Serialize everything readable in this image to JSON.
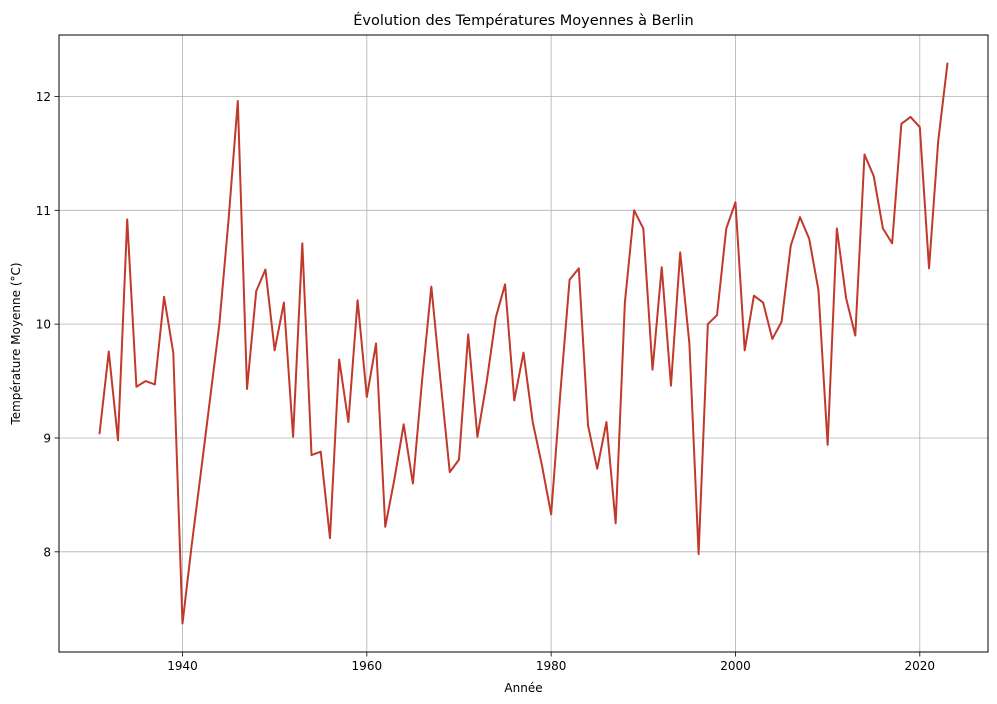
{
  "chart_data": {
    "type": "line",
    "title": "Évolution des Températures Moyennes à Berlin",
    "xlabel": "Année",
    "ylabel": "Température Moyenne (°C)",
    "xlim": [
      1926.6,
      2027.4
    ],
    "ylim": [
      7.12,
      12.54
    ],
    "xticks": [
      1940,
      1960,
      1980,
      2000,
      2020
    ],
    "yticks": [
      8,
      9,
      10,
      11,
      12
    ],
    "grid": true,
    "line_color": "#c0392b",
    "series": [
      {
        "x": [
          1931,
          1932,
          1933,
          1934,
          1935,
          1936,
          1937,
          1938,
          1939,
          1940,
          1941,
          1942,
          1943,
          1944,
          1945,
          1946,
          1947,
          1948,
          1949,
          1950,
          1951,
          1952,
          1953,
          1954,
          1955,
          1956,
          1957,
          1958,
          1959,
          1960,
          1961,
          1962,
          1963,
          1964,
          1965,
          1966,
          1967,
          1968,
          1969,
          1970,
          1971,
          1972,
          1973,
          1974,
          1975,
          1976,
          1977,
          1978,
          1979,
          1980,
          1981,
          1982,
          1983,
          1984,
          1985,
          1986,
          1987,
          1988,
          1989,
          1990,
          1991,
          1992,
          1993,
          1994,
          1995,
          1996,
          1997,
          1998,
          1999,
          2000,
          2001,
          2002,
          2003,
          2004,
          2005,
          2006,
          2007,
          2008,
          2009,
          2010,
          2011,
          2012,
          2013,
          2014,
          2015,
          2016,
          2017,
          2018,
          2019,
          2020,
          2021,
          2022,
          2023
        ],
        "values": [
          9.04,
          9.76,
          8.98,
          10.92,
          9.45,
          9.5,
          9.47,
          10.24,
          9.75,
          7.37,
          8.06,
          8.7,
          9.35,
          10.0,
          10.92,
          11.96,
          9.43,
          10.29,
          10.48,
          9.77,
          10.19,
          9.01,
          10.71,
          8.85,
          8.88,
          8.12,
          9.69,
          9.14,
          10.21,
          9.36,
          9.83,
          8.22,
          8.64,
          9.12,
          8.6,
          9.51,
          10.33,
          9.5,
          8.7,
          8.81,
          9.91,
          9.01,
          9.49,
          10.06,
          10.35,
          9.33,
          9.75,
          9.14,
          8.76,
          8.33,
          9.4,
          10.39,
          10.49,
          9.11,
          8.73,
          9.14,
          8.25,
          10.19,
          11.0,
          10.84,
          9.6,
          10.5,
          9.46,
          10.63,
          9.83,
          7.98,
          10.0,
          10.08,
          10.84,
          11.07,
          9.77,
          10.25,
          10.19,
          9.87,
          10.02,
          10.69,
          10.94,
          10.75,
          10.3,
          8.94,
          10.84,
          10.23,
          9.9,
          11.49,
          11.3,
          10.84,
          10.71,
          11.76,
          11.82,
          11.73,
          10.49,
          11.61,
          12.29
        ]
      }
    ]
  }
}
